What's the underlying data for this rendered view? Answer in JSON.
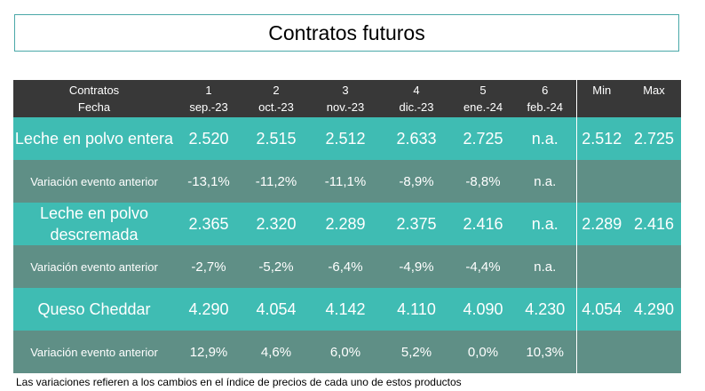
{
  "title": "Contratos futuros",
  "header": {
    "col0": [
      "Contratos",
      "Fecha"
    ],
    "contracts": [
      {
        "num": "1",
        "date": "sep.-23"
      },
      {
        "num": "2",
        "date": "oct.-23"
      },
      {
        "num": "3",
        "date": "nov.-23"
      },
      {
        "num": "4",
        "date": "dic.-23"
      },
      {
        "num": "5",
        "date": "ene.-24"
      },
      {
        "num": "6",
        "date": "feb.-24"
      }
    ],
    "min": "Min",
    "max": "Max"
  },
  "rows": [
    {
      "type": "product",
      "name": "Leche en polvo entera",
      "values": [
        "2.520",
        "2.515",
        "2.512",
        "2.633",
        "2.725",
        "n.a."
      ],
      "min": "2.512",
      "max": "2.725"
    },
    {
      "type": "variation",
      "name": "Variación evento anterior",
      "values": [
        "-13,1%",
        "-11,2%",
        "-11,1%",
        "-8,9%",
        "-8,8%",
        "n.a."
      ],
      "min": "",
      "max": ""
    },
    {
      "type": "product",
      "name": "Leche en polvo descremada",
      "values": [
        "2.365",
        "2.320",
        "2.289",
        "2.375",
        "2.416",
        "n.a."
      ],
      "min": "2.289",
      "max": "2.416"
    },
    {
      "type": "variation",
      "name": "Variación evento anterior",
      "values": [
        "-2,7%",
        "-5,2%",
        "-6,4%",
        "-4,9%",
        "-4,4%",
        "n.a."
      ],
      "min": "",
      "max": ""
    },
    {
      "type": "product",
      "name": "Queso Cheddar",
      "values": [
        "4.290",
        "4.054",
        "4.142",
        "4.110",
        "4.090",
        "4.230"
      ],
      "min": "4.054",
      "max": "4.290"
    },
    {
      "type": "variation",
      "name": "Variación evento anterior",
      "values": [
        "12,9%",
        "4,6%",
        "6,0%",
        "5,2%",
        "0,0%",
        "10,3%"
      ],
      "min": "",
      "max": ""
    }
  ],
  "footnote": "Las variaciones refieren a los cambios en el índice de precios de cada uno de estos productos"
}
